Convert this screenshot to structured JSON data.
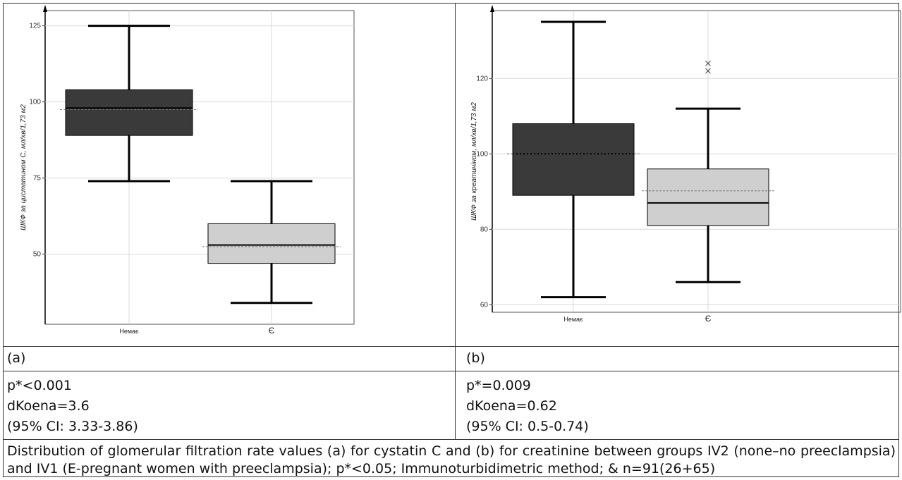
{
  "chart_data": [
    {
      "type": "box",
      "ylabel": "ШКФ за цистатином С, мл/хв/1,73 м2",
      "xlabel": "",
      "ylim": [
        27,
        130
      ],
      "yticks": [
        50,
        75,
        100,
        125
      ],
      "grid": true,
      "categories": [
        "Немає",
        "Є"
      ],
      "boxes": [
        {
          "category": "Немає",
          "min": 74,
          "q1": 89,
          "median": 98,
          "q3": 104,
          "max": 125,
          "mean": 97.5,
          "fill": "#3a3a3a"
        },
        {
          "category": "Є",
          "min": 34,
          "q1": 47,
          "median": 53,
          "q3": 60,
          "max": 74,
          "mean": 52.5,
          "fill": "#cfcfcf"
        }
      ],
      "outliers": []
    },
    {
      "type": "box",
      "ylabel": "ШКФ за креатиніном, мл/хв/1,73 м2",
      "xlabel": "",
      "ylim": [
        58,
        138
      ],
      "yticks": [
        60,
        80,
        100,
        120
      ],
      "grid": true,
      "categories": [
        "Немає",
        "Є"
      ],
      "boxes": [
        {
          "category": "Немає",
          "min": 62,
          "q1": 89,
          "median": 100,
          "q3": 108,
          "max": 135,
          "mean": 100,
          "fill": "#3a3a3a"
        },
        {
          "category": "Є",
          "min": 66,
          "q1": 81,
          "median": 87,
          "q3": 96,
          "max": 112,
          "mean": 90.2,
          "fill": "#cfcfcf"
        }
      ],
      "outliers": [
        {
          "category": "Є",
          "values": [
            122,
            124
          ]
        }
      ]
    }
  ],
  "panels": [
    {
      "label": "(a)",
      "stats": [
        "p*<0.001",
        "dKoena=3.6",
        "(95% CI: 3.33-3.86)"
      ]
    },
    {
      "label": "(b)",
      "stats": [
        "p*=0.009",
        "dKoena=0.62",
        "(95% CI: 0.5-0.74)"
      ]
    }
  ],
  "caption": "Distribution of glomerular filtration rate values (a) for cystatin C and (b) for creatinine between groups IV2 (none–no preeclampsia) and IV1 (E-pregnant women with preeclampsia); p*<0.05; Immunoturbidimetric method; & n=91(26+65)"
}
